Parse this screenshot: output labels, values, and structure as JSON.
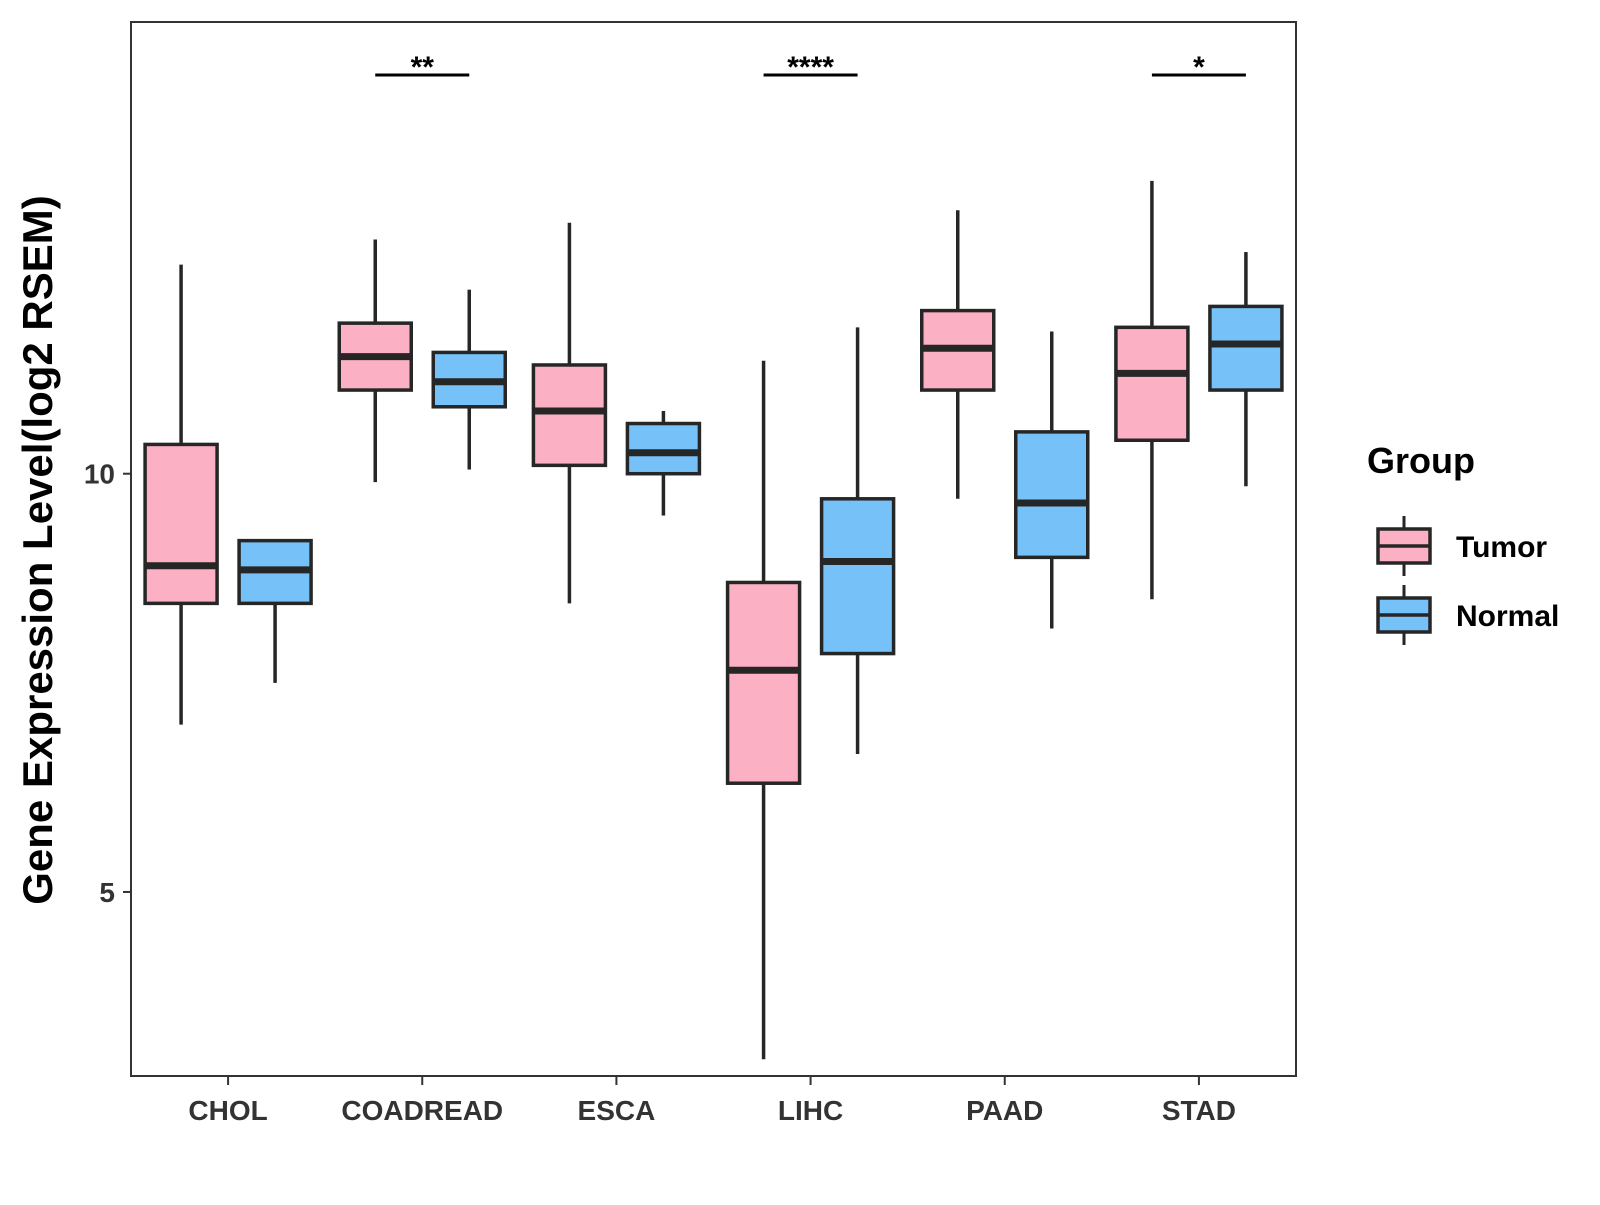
{
  "chart_data": {
    "type": "boxplot",
    "title": "",
    "xlabel": "",
    "ylabel": "Gene Expression Level(log2 RSEM)",
    "ylim": [
      2.8,
      15.4
    ],
    "yticks": [
      5,
      10
    ],
    "categories": [
      "CHOL",
      "COADREAD",
      "ESCA",
      "LIHC",
      "PAAD",
      "STAD"
    ],
    "legend": {
      "title": "Group",
      "position": "right",
      "entries": [
        {
          "name": "Tumor",
          "color": "#FBB1C3"
        },
        {
          "name": "Normal",
          "color": "#75C1F8"
        }
      ]
    },
    "series": [
      {
        "name": "Tumor",
        "color": "#FBB1C3",
        "boxes": [
          {
            "category": "CHOL",
            "min": 7.0,
            "q1": 8.45,
            "median": 8.9,
            "q3": 10.35,
            "max": 12.5
          },
          {
            "category": "COADREAD",
            "min": 9.9,
            "q1": 11.0,
            "median": 11.4,
            "q3": 11.8,
            "max": 12.8
          },
          {
            "category": "ESCA",
            "min": 8.45,
            "q1": 10.1,
            "median": 10.75,
            "q3": 11.3,
            "max": 13.0
          },
          {
            "category": "LIHC",
            "min": 3.0,
            "q1": 6.3,
            "median": 7.65,
            "q3": 8.7,
            "max": 11.35
          },
          {
            "category": "PAAD",
            "min": 9.7,
            "q1": 11.0,
            "median": 11.5,
            "q3": 11.95,
            "max": 13.15
          },
          {
            "category": "STAD",
            "min": 8.5,
            "q1": 10.4,
            "median": 11.2,
            "q3": 11.75,
            "max": 13.5
          }
        ]
      },
      {
        "name": "Normal",
        "color": "#75C1F8",
        "boxes": [
          {
            "category": "CHOL",
            "min": 7.5,
            "q1": 8.45,
            "median": 8.85,
            "q3": 9.2,
            "max": 9.2
          },
          {
            "category": "COADREAD",
            "min": 10.05,
            "q1": 10.8,
            "median": 11.1,
            "q3": 11.45,
            "max": 12.2
          },
          {
            "category": "ESCA",
            "min": 9.5,
            "q1": 10.0,
            "median": 10.25,
            "q3": 10.6,
            "max": 10.75
          },
          {
            "category": "LIHC",
            "min": 6.65,
            "q1": 7.85,
            "median": 8.95,
            "q3": 9.7,
            "max": 11.75
          },
          {
            "category": "PAAD",
            "min": 8.15,
            "q1": 9.0,
            "median": 9.65,
            "q3": 10.5,
            "max": 11.7
          },
          {
            "category": "STAD",
            "min": 9.85,
            "q1": 11.0,
            "median": 11.55,
            "q3": 12.0,
            "max": 12.65
          }
        ]
      }
    ],
    "significance": [
      {
        "category": "COADREAD",
        "label": "**"
      },
      {
        "category": "LIHC",
        "label": "****"
      },
      {
        "category": "STAD",
        "label": "*"
      }
    ]
  }
}
